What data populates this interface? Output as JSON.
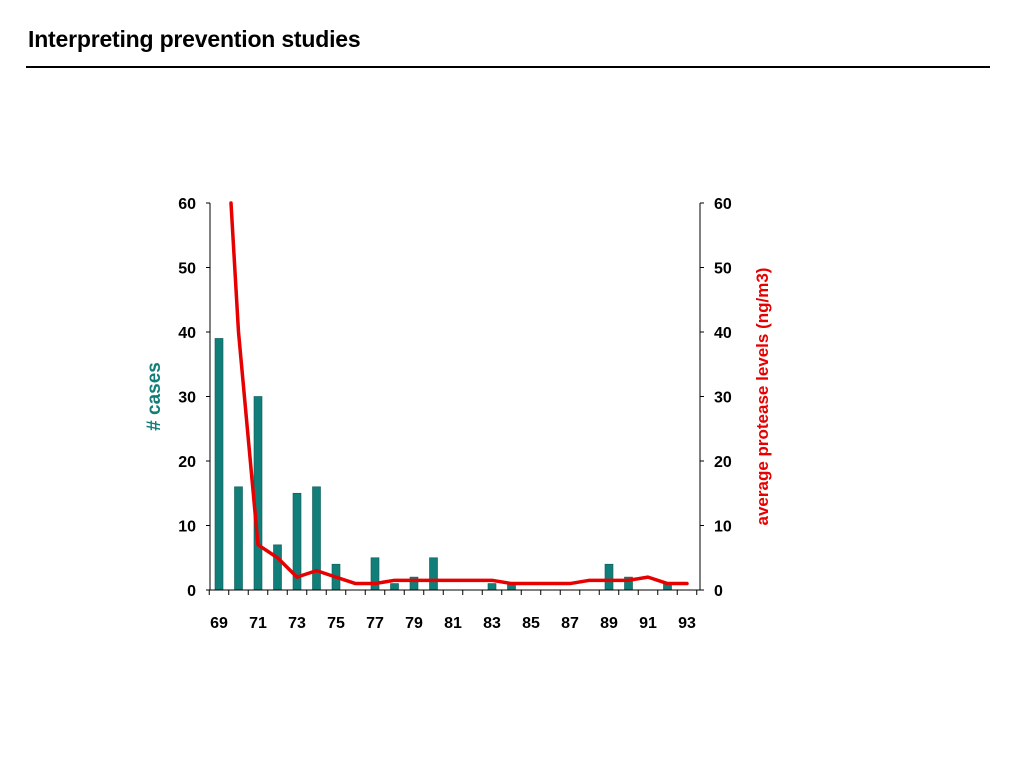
{
  "slide": {
    "title": "Interpreting prevention studies"
  },
  "colors": {
    "bars": "#127E7A",
    "line": "#E60000",
    "axis": "#000000"
  },
  "chart_data": {
    "type": "bar",
    "x": [
      69,
      70,
      71,
      72,
      73,
      74,
      75,
      76,
      77,
      78,
      79,
      80,
      81,
      82,
      83,
      84,
      85,
      86,
      87,
      88,
      89,
      90,
      91,
      92,
      93
    ],
    "x_tick_labels": [
      "69",
      "71",
      "73",
      "75",
      "77",
      "79",
      "81",
      "83",
      "85",
      "87",
      "89",
      "91",
      "93"
    ],
    "y_ticks": [
      "0",
      "10",
      "20",
      "30",
      "40",
      "50",
      "60"
    ],
    "ylim": [
      0,
      60
    ],
    "ylabel": "# cases",
    "y2label": "average protease levels (ng/m3)",
    "y2lim": [
      0,
      60
    ],
    "series": [
      {
        "type": "bar",
        "axis": "left",
        "values": [
          39,
          16,
          30,
          7,
          15,
          16,
          4,
          0,
          5,
          1,
          2,
          5,
          0,
          0,
          1,
          1,
          0,
          0,
          0,
          0,
          4,
          2,
          0,
          1,
          0
        ]
      },
      {
        "type": "line",
        "axis": "right",
        "values": [
          60,
          40,
          7,
          5,
          2,
          3,
          2,
          1,
          1,
          1.5,
          1.5,
          1.5,
          1.5,
          1.5,
          1.5,
          1,
          1,
          1,
          1,
          1.5,
          1.5,
          1.5,
          2,
          1,
          1
        ]
      }
    ]
  }
}
